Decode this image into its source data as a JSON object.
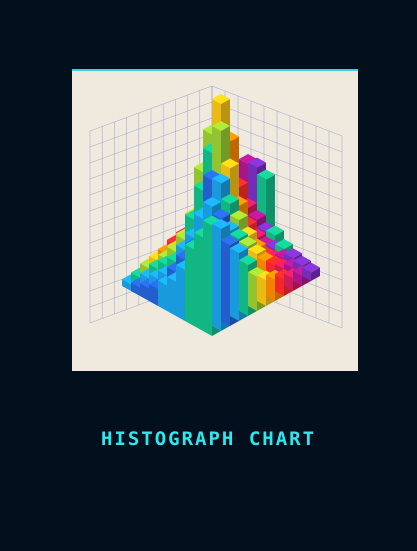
{
  "illustration": {
    "description_icon": "3d-histogram-illustration-icon",
    "palette": [
      "#12c08a",
      "#1aa2e8",
      "#2563d8",
      "#f7c416",
      "#ff8a00",
      "#ff2a2a",
      "#d81b60",
      "#b0168f",
      "#7a2fc0",
      "#8c9bd6"
    ]
  },
  "caption": {
    "text": "HISTOGRAPH CHART"
  }
}
